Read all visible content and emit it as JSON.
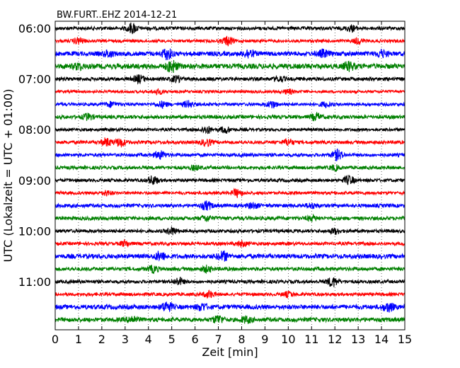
{
  "chart_data": {
    "type": "line",
    "title": "BW.FURT..EHZ 2014-12-21",
    "xlabel": "Zeit  [min]",
    "ylabel": "UTC (Lokalzeit = UTC + 01:00)",
    "xlim": [
      0,
      15
    ],
    "x_ticks": [
      0,
      1,
      2,
      3,
      4,
      5,
      6,
      7,
      8,
      9,
      10,
      11,
      12,
      13,
      14,
      15
    ],
    "x_tick_labels": [
      "0",
      "1",
      "2",
      "3",
      "4",
      "5",
      "6",
      "7",
      "8",
      "9",
      "10",
      "11",
      "12",
      "13",
      "14",
      "15"
    ],
    "y_tick_labels": [
      "06:00",
      "07:00",
      "08:00",
      "09:00",
      "10:00",
      "11:00"
    ],
    "y_tick_rows": [
      0,
      4,
      8,
      12,
      16,
      20
    ],
    "trace_colors": [
      "#000000",
      "#ff0000",
      "#0000ff",
      "#008000"
    ],
    "grid": "vertical dotted at every minute",
    "series": [
      {
        "start": "06:00",
        "color": "#000000",
        "level": 0.55,
        "bursts": [
          [
            3.3,
            1.6
          ],
          [
            12.7,
            0.9
          ]
        ]
      },
      {
        "start": "06:15",
        "color": "#ff0000",
        "level": 0.5,
        "bursts": [
          [
            1.0,
            1.0
          ],
          [
            7.4,
            1.4
          ],
          [
            13.0,
            0.9
          ]
        ]
      },
      {
        "start": "06:30",
        "color": "#0000ff",
        "level": 0.75,
        "bursts": [
          [
            2.3,
            0.9
          ],
          [
            4.8,
            1.6
          ],
          [
            8.3,
            1.3
          ],
          [
            11.5,
            1.0
          ],
          [
            14.0,
            1.0
          ]
        ]
      },
      {
        "start": "06:45",
        "color": "#008000",
        "level": 0.85,
        "bursts": [
          [
            1.0,
            0.8
          ],
          [
            5.0,
            1.8
          ],
          [
            12.6,
            1.2
          ]
        ]
      },
      {
        "start": "07:00",
        "color": "#000000",
        "level": 0.6,
        "bursts": [
          [
            3.6,
            1.1
          ],
          [
            5.2,
            0.9
          ],
          [
            9.6,
            0.8
          ]
        ]
      },
      {
        "start": "07:15",
        "color": "#ff0000",
        "level": 0.45,
        "bursts": [
          [
            4.4,
            0.7
          ],
          [
            10.0,
            0.7
          ]
        ]
      },
      {
        "start": "07:30",
        "color": "#0000ff",
        "level": 0.5,
        "bursts": [
          [
            2.4,
            0.8
          ],
          [
            4.6,
            0.9
          ],
          [
            5.7,
            1.0
          ],
          [
            9.3,
            1.1
          ],
          [
            11.6,
            0.8
          ]
        ]
      },
      {
        "start": "07:45",
        "color": "#008000",
        "level": 0.6,
        "bursts": [
          [
            1.4,
            0.9
          ],
          [
            11.2,
            1.1
          ]
        ]
      },
      {
        "start": "08:00",
        "color": "#000000",
        "level": 0.5,
        "bursts": [
          [
            6.5,
            1.1
          ],
          [
            7.3,
            1.0
          ]
        ]
      },
      {
        "start": "08:15",
        "color": "#ff0000",
        "level": 0.55,
        "bursts": [
          [
            2.2,
            1.2
          ],
          [
            2.8,
            1.3
          ],
          [
            6.5,
            1.1
          ],
          [
            10.0,
            1.0
          ]
        ]
      },
      {
        "start": "08:30",
        "color": "#0000ff",
        "level": 0.55,
        "bursts": [
          [
            4.5,
            1.2
          ],
          [
            12.1,
            1.6
          ]
        ]
      },
      {
        "start": "08:45",
        "color": "#008000",
        "level": 0.55,
        "bursts": [
          [
            6.0,
            0.7
          ],
          [
            12.0,
            0.7
          ]
        ]
      },
      {
        "start": "09:00",
        "color": "#000000",
        "level": 0.55,
        "bursts": [
          [
            4.2,
            1.3
          ],
          [
            12.6,
            1.3
          ]
        ]
      },
      {
        "start": "09:15",
        "color": "#ff0000",
        "level": 0.5,
        "bursts": [
          [
            2.2,
            0.7
          ],
          [
            7.8,
            1.2
          ]
        ]
      },
      {
        "start": "09:30",
        "color": "#0000ff",
        "level": 0.6,
        "bursts": [
          [
            6.5,
            1.3
          ],
          [
            8.5,
            0.8
          ],
          [
            11.0,
            0.7
          ]
        ]
      },
      {
        "start": "09:45",
        "color": "#008000",
        "level": 0.6,
        "bursts": [
          [
            6.5,
            0.8
          ],
          [
            11.0,
            0.7
          ]
        ]
      },
      {
        "start": "10:00",
        "color": "#000000",
        "level": 0.55,
        "bursts": [
          [
            5.0,
            1.1
          ],
          [
            12.0,
            0.8
          ]
        ]
      },
      {
        "start": "10:15",
        "color": "#ff0000",
        "level": 0.55,
        "bursts": [
          [
            3.0,
            0.8
          ],
          [
            8.0,
            0.8
          ]
        ]
      },
      {
        "start": "10:30",
        "color": "#0000ff",
        "level": 0.75,
        "bursts": [
          [
            4.5,
            1.3
          ],
          [
            7.2,
            1.4
          ]
        ]
      },
      {
        "start": "10:45",
        "color": "#008000",
        "level": 0.6,
        "bursts": [
          [
            4.2,
            1.0
          ],
          [
            6.5,
            0.9
          ]
        ]
      },
      {
        "start": "11:00",
        "color": "#000000",
        "level": 0.55,
        "bursts": [
          [
            5.3,
            1.1
          ],
          [
            11.9,
            1.5
          ]
        ]
      },
      {
        "start": "11:15",
        "color": "#ff0000",
        "level": 0.55,
        "bursts": [
          [
            6.6,
            1.0
          ],
          [
            10.0,
            0.7
          ]
        ]
      },
      {
        "start": "11:30",
        "color": "#0000ff",
        "level": 0.75,
        "bursts": [
          [
            4.8,
            1.5
          ],
          [
            6.3,
            1.0
          ],
          [
            14.3,
            1.3
          ]
        ]
      },
      {
        "start": "11:45",
        "color": "#008000",
        "level": 0.7,
        "bursts": [
          [
            3.3,
            1.0
          ],
          [
            7.0,
            1.2
          ],
          [
            8.2,
            0.9
          ]
        ]
      }
    ]
  }
}
